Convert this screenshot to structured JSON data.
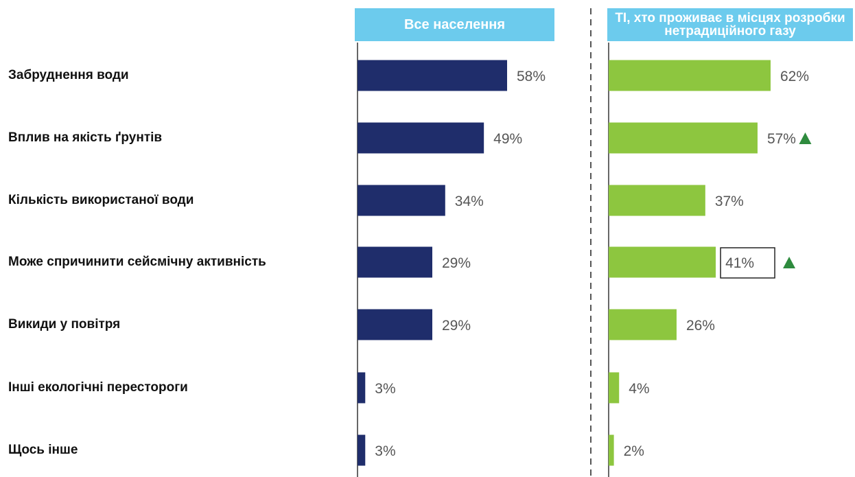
{
  "chart_data": {
    "type": "bar",
    "orientation": "horizontal",
    "categories": [
      "Забруднення води",
      "Вплив на якість ґрунтів",
      "Кількість використаної води",
      "Може спричинити сейсмічну активність",
      "Викиди у повітря",
      "Інші екологічні перестороги",
      "Щось інше"
    ],
    "series": [
      {
        "name": "Все населення",
        "values": [
          58,
          49,
          34,
          29,
          29,
          3,
          3
        ],
        "labels": [
          "58%",
          "49%",
          "34%",
          "29%",
          "29%",
          "3%",
          "3%"
        ],
        "color": "#1f2d6b"
      },
      {
        "name": "ТІ, хто проживає в місцях розробки нетрадиційного газу",
        "values": [
          62,
          57,
          37,
          41,
          26,
          4,
          2
        ],
        "labels": [
          "62%",
          "57%",
          "37%",
          "41%",
          "26%",
          "4%",
          "2%"
        ],
        "color": "#8dc63f",
        "up_markers": [
          1,
          3
        ],
        "boxed": [
          3
        ]
      }
    ],
    "unit": "%",
    "grid": false,
    "header_color": "#6ccbed",
    "marker_color": "#2e8b3e"
  }
}
